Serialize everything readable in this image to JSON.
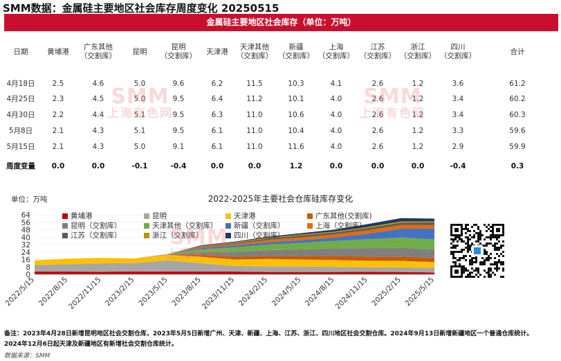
{
  "title": "SMM数据：金属硅主要地区社会库存周度变化 20250515",
  "table_title": "金属硅主要地区社会库存（单位：万吨）",
  "table": {
    "headers": [
      [
        "日期"
      ],
      [
        "黄埔港"
      ],
      [
        "广东其他",
        "（交割库）"
      ],
      [
        "昆明"
      ],
      [
        "昆明",
        "（交割库）"
      ],
      [
        "天津港"
      ],
      [
        "天津其他",
        "（交割库）"
      ],
      [
        "新疆",
        "（交割库）"
      ],
      [
        "上海",
        "（交割库）"
      ],
      [
        "江苏",
        "（交割库）"
      ],
      [
        "浙江",
        "（交割库）"
      ],
      [
        "四川",
        "（交割库）"
      ],
      [
        "合计"
      ]
    ],
    "rows": [
      [
        "4月18日",
        "2.5",
        "4.6",
        "5.0",
        "9.6",
        "6.2",
        "11.5",
        "10.3",
        "4.1",
        "2.6",
        "1.2",
        "3.6",
        "61.2"
      ],
      [
        "4月25日",
        "2.3",
        "4.5",
        "5.0",
        "9.5",
        "6.4",
        "11.2",
        "10.1",
        "4.0",
        "2.6",
        "1.2",
        "3.4",
        "60.2"
      ],
      [
        "4月30日",
        "2.2",
        "4.4",
        "5.1",
        "9.5",
        "6.3",
        "11.0",
        "10.6",
        "4.0",
        "2.6",
        "1.2",
        "3.4",
        "60.3"
      ],
      [
        "5月8日",
        "2.1",
        "4.3",
        "5.1",
        "9.5",
        "6.1",
        "11.0",
        "10.4",
        "4.0",
        "2.6",
        "1.2",
        "3.3",
        "59.6"
      ],
      [
        "5月15日",
        "2.1",
        "4.3",
        "5.0",
        "9.1",
        "6.1",
        "11.0",
        "11.6",
        "4.0",
        "2.6",
        "1.2",
        "2.9",
        "59.9"
      ]
    ],
    "change_row": [
      "周度变量",
      "0.0",
      "0.0",
      "-0.1",
      "-0.4",
      "0.0",
      "0.0",
      "1.2",
      "0.0",
      "0.0",
      "0.0",
      "-0.4",
      "0.3"
    ]
  },
  "watermark": {
    "big": "SMM",
    "small": "上海有色网"
  },
  "chart_data": {
    "type": "area",
    "stacked": true,
    "title": "2022-2025年主要社会仓库硅库存变化",
    "ylabel": "单位：万吨",
    "ylim": [
      0,
      64
    ],
    "yticks": [
      0,
      8,
      16,
      24,
      32,
      40,
      48,
      56,
      64
    ],
    "x": [
      "2022/5/15",
      "2022/8/15",
      "2022/11/15",
      "2023/2/15",
      "2023/5/15",
      "2023/8/15",
      "2023/11/15",
      "2024/2/15",
      "2024/5/15",
      "2024/8/15",
      "2024/11/15",
      "2025/2/15",
      "2025/5/15"
    ],
    "series": [
      {
        "name": "黄埔港",
        "color": "#c00000",
        "values": [
          3.0,
          3.0,
          2.8,
          3.2,
          3.0,
          3.0,
          3.0,
          2.5,
          2.5,
          2.5,
          2.6,
          2.5,
          2.1
        ]
      },
      {
        "name": "昆明",
        "color": "#a6a6a6",
        "values": [
          7.0,
          8.0,
          9.0,
          9.0,
          12.0,
          9.0,
          6.0,
          6.0,
          6.0,
          5.5,
          5.0,
          5.0,
          5.0
        ]
      },
      {
        "name": "天津港",
        "color": "#ffc000",
        "values": [
          5.0,
          6.0,
          6.0,
          5.0,
          6.0,
          7.0,
          7.0,
          8.0,
          7.5,
          7.5,
          7.0,
          7.0,
          6.1
        ]
      },
      {
        "name": "广东其他(交割库)",
        "color": "#c55a11",
        "values": [
          0,
          0,
          0,
          0,
          0.2,
          2.0,
          3.0,
          3.5,
          3.8,
          4.5,
          4.6,
          4.6,
          4.3
        ]
      },
      {
        "name": "昆明（交割库）",
        "color": "#7f7f7f",
        "values": [
          0,
          0,
          0,
          0,
          0.2,
          3.0,
          5.0,
          6.0,
          7.0,
          8.0,
          9.0,
          9.5,
          9.1
        ]
      },
      {
        "name": "天津其他（交割库）",
        "color": "#70ad47",
        "values": [
          0,
          0,
          0,
          0,
          0.2,
          3.0,
          5.0,
          6.0,
          7.0,
          8.0,
          9.5,
          11.0,
          11.0
        ]
      },
      {
        "name": "新疆（交割库）",
        "color": "#4472c4",
        "values": [
          0,
          0,
          0,
          0,
          0.1,
          1.5,
          2.0,
          2.5,
          3.0,
          3.5,
          6.0,
          9.5,
          11.6
        ]
      },
      {
        "name": "上海（交割库）",
        "color": "#e26b0a",
        "values": [
          0,
          0,
          0,
          0,
          0.1,
          1.0,
          1.5,
          2.5,
          3.0,
          3.5,
          3.8,
          4.0,
          4.0
        ]
      },
      {
        "name": "江苏（交割库）",
        "color": "#5b5b5b",
        "values": [
          0,
          0,
          0,
          0,
          0.1,
          0.8,
          1.0,
          1.5,
          2.0,
          2.0,
          2.3,
          2.6,
          2.6
        ]
      },
      {
        "name": "浙江（交割库）",
        "color": "#bf9000",
        "values": [
          0,
          0,
          0,
          0,
          0,
          0.5,
          0.8,
          1.0,
          1.0,
          1.1,
          1.2,
          1.2,
          1.2
        ]
      },
      {
        "name": "四川（交割库）",
        "color": "#203864",
        "values": [
          0,
          0,
          0,
          0,
          0,
          0.5,
          0.8,
          1.0,
          1.5,
          2.0,
          3.0,
          3.6,
          2.9
        ]
      }
    ],
    "legend": [
      {
        "name": "黄埔港",
        "color": "#c00000"
      },
      {
        "name": "昆明",
        "color": "#a6a6a6"
      },
      {
        "name": "天津港",
        "color": "#ffc000"
      },
      {
        "name": "广东其他(交割库)",
        "color": "#c55a11"
      },
      {
        "name": "昆明（交割库）",
        "color": "#7f7f7f"
      },
      {
        "name": "天津其他（交割库）",
        "color": "#70ad47"
      },
      {
        "name": "新疆（交割库）",
        "color": "#4472c4"
      },
      {
        "name": "上海（交割库）",
        "color": "#e26b0a"
      },
      {
        "name": "江苏（交割库）",
        "color": "#5b5b5b"
      },
      {
        "name": "浙江（交割库）",
        "color": "#bf9000"
      },
      {
        "name": "四川（交割库）",
        "color": "#203864"
      }
    ]
  },
  "notes": [
    "备注：2023年4月28日新增昆明地区社会交割仓库，2023年5月5日新增广州、天津、新疆、上海、江苏、浙江、四川地区社会交割仓库。2024年9月13日新增新疆地区一个普通仓库统计。",
    "2024年12月6日起天津及新疆地区有新增社会交割仓库统计。"
  ],
  "source": "数据来源：SMM"
}
